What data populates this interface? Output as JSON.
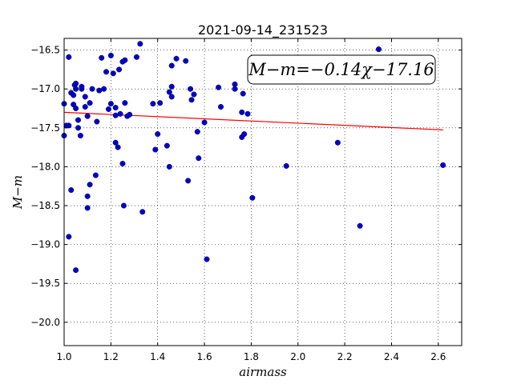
{
  "chart_data": {
    "type": "scatter",
    "title": "2021-09-14_231523",
    "xlabel": "airmass",
    "ylabel": "M−m",
    "xlim": [
      1.0,
      2.7
    ],
    "ylim": [
      -20.3,
      -16.35
    ],
    "y_inverted": true,
    "grid": true,
    "xticks": [
      1.0,
      1.2,
      1.4,
      1.6,
      1.8,
      2.0,
      2.2,
      2.4,
      2.6
    ],
    "xtick_labels": [
      "1.0",
      "1.2",
      "1.4",
      "1.6",
      "1.8",
      "2.0",
      "2.2",
      "2.4",
      "2.6"
    ],
    "yticks": [
      -16.5,
      -17.0,
      -17.5,
      -18.0,
      -18.5,
      -19.0,
      -19.5,
      -20.0
    ],
    "ytick_labels": [
      "−16.5",
      "−17.0",
      "−17.5",
      "−18.0",
      "−18.5",
      "−19.0",
      "−19.5",
      "−20.0"
    ],
    "annotation": "M−m=−0.14χ−17.16",
    "fit": {
      "slope": -0.14,
      "intercept": -17.16,
      "x_range": [
        1.0,
        2.62
      ],
      "color": "#ff0000"
    },
    "point_color": "#0000cc",
    "points": [
      {
        "x": 1.0,
        "y": -17.6
      },
      {
        "x": 1.0,
        "y": -17.19
      },
      {
        "x": 1.01,
        "y": -17.47
      },
      {
        "x": 1.02,
        "y": -16.59
      },
      {
        "x": 1.02,
        "y": -17.47
      },
      {
        "x": 1.02,
        "y": -18.9
      },
      {
        "x": 1.03,
        "y": -17.05
      },
      {
        "x": 1.03,
        "y": -18.3
      },
      {
        "x": 1.04,
        "y": -17.08
      },
      {
        "x": 1.04,
        "y": -17.2
      },
      {
        "x": 1.045,
        "y": -16.95
      },
      {
        "x": 1.05,
        "y": -17.0
      },
      {
        "x": 1.05,
        "y": -16.93
      },
      {
        "x": 1.05,
        "y": -17.25
      },
      {
        "x": 1.05,
        "y": -19.33
      },
      {
        "x": 1.06,
        "y": -17.4
      },
      {
        "x": 1.06,
        "y": -17.5
      },
      {
        "x": 1.07,
        "y": -17.6
      },
      {
        "x": 1.075,
        "y": -17.0
      },
      {
        "x": 1.075,
        "y": -16.97
      },
      {
        "x": 1.09,
        "y": -17.1
      },
      {
        "x": 1.09,
        "y": -17.23
      },
      {
        "x": 1.1,
        "y": -17.35
      },
      {
        "x": 1.1,
        "y": -18.38
      },
      {
        "x": 1.1,
        "y": -18.53
      },
      {
        "x": 1.11,
        "y": -17.18
      },
      {
        "x": 1.11,
        "y": -18.23
      },
      {
        "x": 1.12,
        "y": -17.0
      },
      {
        "x": 1.135,
        "y": -18.11
      },
      {
        "x": 1.14,
        "y": -17.42
      },
      {
        "x": 1.15,
        "y": -17.02
      },
      {
        "x": 1.16,
        "y": -16.6
      },
      {
        "x": 1.17,
        "y": -17.0
      },
      {
        "x": 1.18,
        "y": -16.78
      },
      {
        "x": 1.19,
        "y": -17.26
      },
      {
        "x": 1.2,
        "y": -16.57
      },
      {
        "x": 1.2,
        "y": -17.19
      },
      {
        "x": 1.21,
        "y": -16.8
      },
      {
        "x": 1.22,
        "y": -17.34
      },
      {
        "x": 1.22,
        "y": -17.24
      },
      {
        "x": 1.22,
        "y": -17.69
      },
      {
        "x": 1.23,
        "y": -17.75
      },
      {
        "x": 1.235,
        "y": -16.75
      },
      {
        "x": 1.24,
        "y": -17.32
      },
      {
        "x": 1.25,
        "y": -16.65
      },
      {
        "x": 1.25,
        "y": -17.96
      },
      {
        "x": 1.255,
        "y": -18.5
      },
      {
        "x": 1.26,
        "y": -16.63
      },
      {
        "x": 1.26,
        "y": -17.18
      },
      {
        "x": 1.27,
        "y": -17.35
      },
      {
        "x": 1.28,
        "y": -17.33
      },
      {
        "x": 1.31,
        "y": -16.59
      },
      {
        "x": 1.325,
        "y": -16.42
      },
      {
        "x": 1.335,
        "y": -18.58
      },
      {
        "x": 1.38,
        "y": -17.19
      },
      {
        "x": 1.39,
        "y": -17.78
      },
      {
        "x": 1.4,
        "y": -17.58
      },
      {
        "x": 1.41,
        "y": -17.18
      },
      {
        "x": 1.44,
        "y": -17.73
      },
      {
        "x": 1.45,
        "y": -18.0
      },
      {
        "x": 1.45,
        "y": -17.04
      },
      {
        "x": 1.46,
        "y": -16.97
      },
      {
        "x": 1.46,
        "y": -17.1
      },
      {
        "x": 1.46,
        "y": -16.7
      },
      {
        "x": 1.48,
        "y": -16.61
      },
      {
        "x": 1.52,
        "y": -16.64
      },
      {
        "x": 1.53,
        "y": -18.18
      },
      {
        "x": 1.54,
        "y": -17.0
      },
      {
        "x": 1.545,
        "y": -17.14
      },
      {
        "x": 1.555,
        "y": -17.07
      },
      {
        "x": 1.57,
        "y": -17.55
      },
      {
        "x": 1.575,
        "y": -17.89
      },
      {
        "x": 1.6,
        "y": -17.43
      },
      {
        "x": 1.61,
        "y": -19.19
      },
      {
        "x": 1.66,
        "y": -16.98
      },
      {
        "x": 1.67,
        "y": -17.23
      },
      {
        "x": 1.73,
        "y": -16.94
      },
      {
        "x": 1.73,
        "y": -17.0
      },
      {
        "x": 1.76,
        "y": -17.62
      },
      {
        "x": 1.76,
        "y": -17.3
      },
      {
        "x": 1.765,
        "y": -17.06
      },
      {
        "x": 1.77,
        "y": -17.58
      },
      {
        "x": 1.785,
        "y": -17.32
      },
      {
        "x": 1.805,
        "y": -18.4
      },
      {
        "x": 1.95,
        "y": -17.99
      },
      {
        "x": 2.17,
        "y": -17.69
      },
      {
        "x": 2.265,
        "y": -18.76
      },
      {
        "x": 2.345,
        "y": -16.49
      },
      {
        "x": 2.62,
        "y": -17.98
      }
    ]
  }
}
